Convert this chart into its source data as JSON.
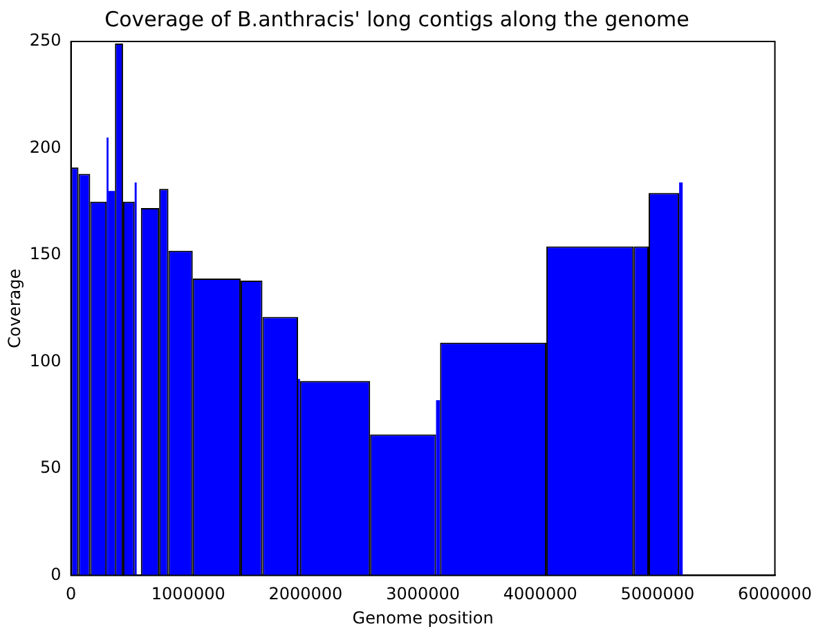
{
  "chart_data": {
    "type": "histogram",
    "title": "Coverage of B.anthracis' long contigs along the genome",
    "xlabel": "Genome position",
    "ylabel": "Coverage",
    "bins": [
      0,
      64000,
      164000,
      304000,
      320000,
      375000,
      444000,
      543000,
      560000,
      596000,
      752000,
      831000,
      1038000,
      1446000,
      1632000,
      1936000,
      1952000,
      2550000,
      3112000,
      3146000,
      4052000,
      4796000,
      4924000,
      5184000,
      5214000
    ],
    "values": [
      191,
      188,
      175,
      205,
      180,
      249,
      175,
      184,
      null,
      172,
      181,
      152,
      139,
      138,
      121,
      92,
      91,
      66,
      82,
      109,
      154,
      154,
      179,
      184
    ],
    "color": "#0000ff",
    "xlim": [
      0,
      6000000
    ],
    "xticks": [
      0,
      1000000,
      2000000,
      3000000,
      4000000,
      5000000,
      6000000
    ],
    "ylim": [
      0,
      250
    ],
    "yticks": [
      0,
      50,
      100,
      150,
      200,
      250
    ],
    "grid": false,
    "legend": false
  }
}
